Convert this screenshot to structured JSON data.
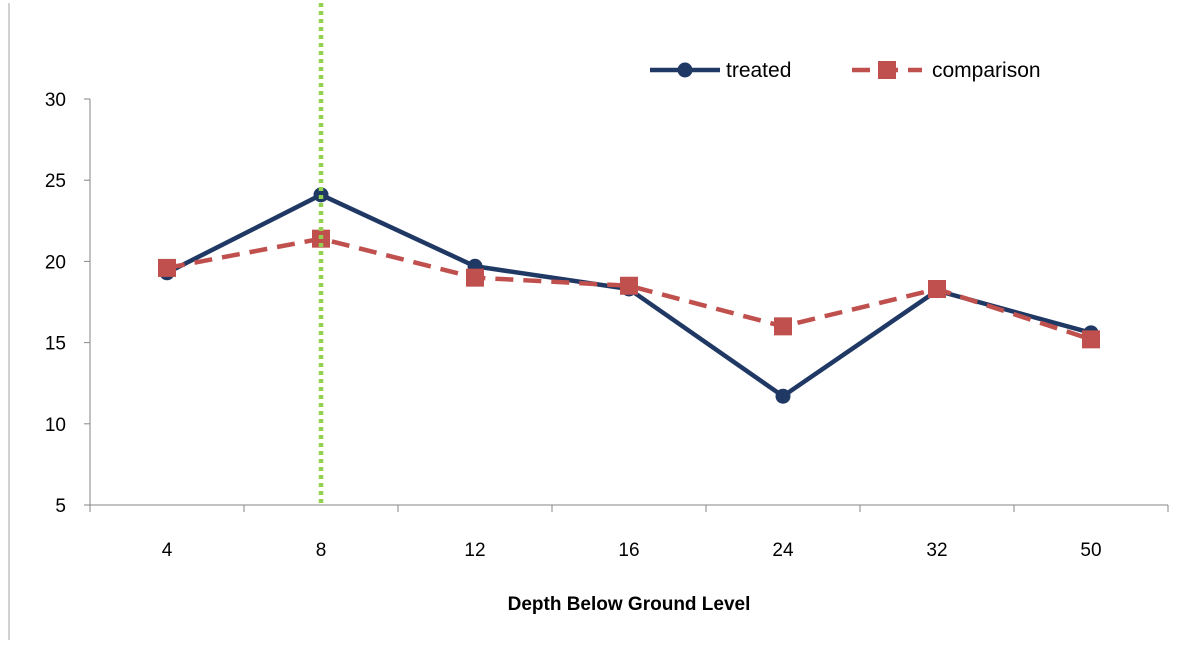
{
  "chart_data": {
    "type": "line",
    "title": "",
    "xlabel": "Depth Below Ground Level",
    "ylabel": "",
    "categories": [
      "4",
      "8",
      "12",
      "16",
      "24",
      "32",
      "50"
    ],
    "ylim": [
      5,
      30
    ],
    "yticks": [
      5,
      10,
      15,
      20,
      25,
      30
    ],
    "grid": false,
    "legend": "top-right",
    "series": [
      {
        "name": "treated",
        "values": [
          19.3,
          24.1,
          19.7,
          18.3,
          11.7,
          18.2,
          15.6
        ],
        "color": "#1f3864",
        "marker": "circle",
        "line": "solid"
      },
      {
        "name": "comparison",
        "values": [
          19.6,
          21.4,
          19.0,
          18.5,
          16.0,
          18.3,
          15.2
        ],
        "color": "#c0504d",
        "marker": "square",
        "line": "dashed"
      }
    ],
    "reference_line": {
      "x_category": "8",
      "color": "#92d050",
      "style": "dotted"
    }
  }
}
